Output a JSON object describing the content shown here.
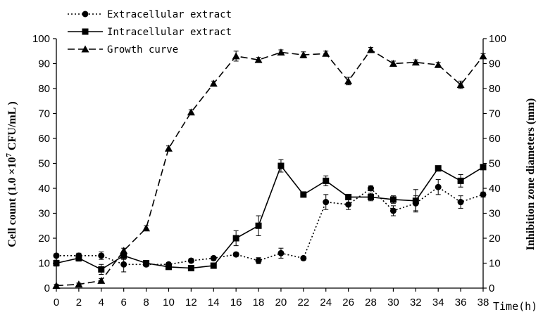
{
  "chart_data": {
    "type": "line",
    "xlabel": "Time(h)",
    "ylabel_left_prefix": "Cell count (1.0 ×10",
    "ylabel_left_exp": "7",
    "ylabel_left_suffix": " CFU/mL )",
    "ylabel_right": "Inhibition zone diameters (mm)",
    "x_ticks": [
      "0",
      "2",
      "4",
      "6",
      "8",
      "10",
      "12",
      "14",
      "16",
      "18",
      "20",
      "22",
      "24",
      "26",
      "28",
      "30",
      "32",
      "34",
      "36",
      "38"
    ],
    "y_left_ticks": [
      "0",
      "10",
      "20",
      "30",
      "40",
      "50",
      "60",
      "70",
      "80",
      "90",
      "100"
    ],
    "y_right_ticks": [
      "0",
      "10",
      "20",
      "30",
      "40",
      "50",
      "60",
      "70",
      "80",
      "90",
      "100"
    ],
    "xlim": [
      0,
      38
    ],
    "ylim_left": [
      0,
      100
    ],
    "ylim_right": [
      0,
      100
    ],
    "legend_position": "top-left",
    "series": [
      {
        "name": "Extracellular extract",
        "style": "dotted",
        "marker": "circle",
        "color": "#000000",
        "x": [
          0,
          2,
          4,
          6,
          8,
          10,
          12,
          14,
          16,
          18,
          20,
          22,
          24,
          26,
          28,
          30,
          32,
          34,
          36,
          38
        ],
        "values": [
          13,
          13,
          13,
          9.5,
          9.5,
          9.5,
          11,
          12,
          13.5,
          11,
          14,
          12,
          34.5,
          33.5,
          40,
          31,
          34,
          40.5,
          34.5,
          37.5
        ],
        "errors": [
          0.8,
          1,
          1.5,
          3,
          0.8,
          0.8,
          0.8,
          0.8,
          0.8,
          1.2,
          2,
          0.8,
          3,
          2,
          1,
          2,
          3,
          3,
          2.5,
          1
        ]
      },
      {
        "name": "Intracellular extract",
        "style": "solid",
        "marker": "square",
        "color": "#000000",
        "x": [
          0,
          2,
          4,
          6,
          8,
          10,
          12,
          14,
          16,
          18,
          20,
          22,
          24,
          26,
          28,
          30,
          32,
          34,
          36,
          38
        ],
        "values": [
          10,
          12,
          7.5,
          13,
          10,
          8.5,
          8,
          9,
          20,
          25,
          49,
          37.5,
          43,
          36.5,
          36.5,
          35.5,
          35,
          48,
          43,
          48.5
        ],
        "errors": [
          1.2,
          1.2,
          2,
          1.5,
          1,
          1,
          0.8,
          1,
          3,
          4,
          2.5,
          1,
          2,
          1,
          1.5,
          1.5,
          4.5,
          1,
          2.5,
          1
        ]
      },
      {
        "name": "Growth curve",
        "style": "dashed",
        "marker": "triangle",
        "color": "#000000",
        "x": [
          0,
          2,
          4,
          6,
          8,
          10,
          12,
          14,
          16,
          18,
          20,
          22,
          24,
          26,
          28,
          30,
          32,
          34,
          36,
          38
        ],
        "values": [
          1,
          1.5,
          3,
          15,
          24,
          56,
          70.5,
          82,
          93,
          91.5,
          94.5,
          93.5,
          94,
          83,
          95.5,
          90,
          90.5,
          89.5,
          81.5,
          93
        ],
        "errors": [
          0.5,
          0.5,
          0.8,
          1,
          1,
          1,
          1,
          1,
          2,
          1,
          1,
          1.2,
          1,
          1.5,
          1,
          1,
          1,
          1,
          1.5,
          1
        ]
      }
    ]
  }
}
